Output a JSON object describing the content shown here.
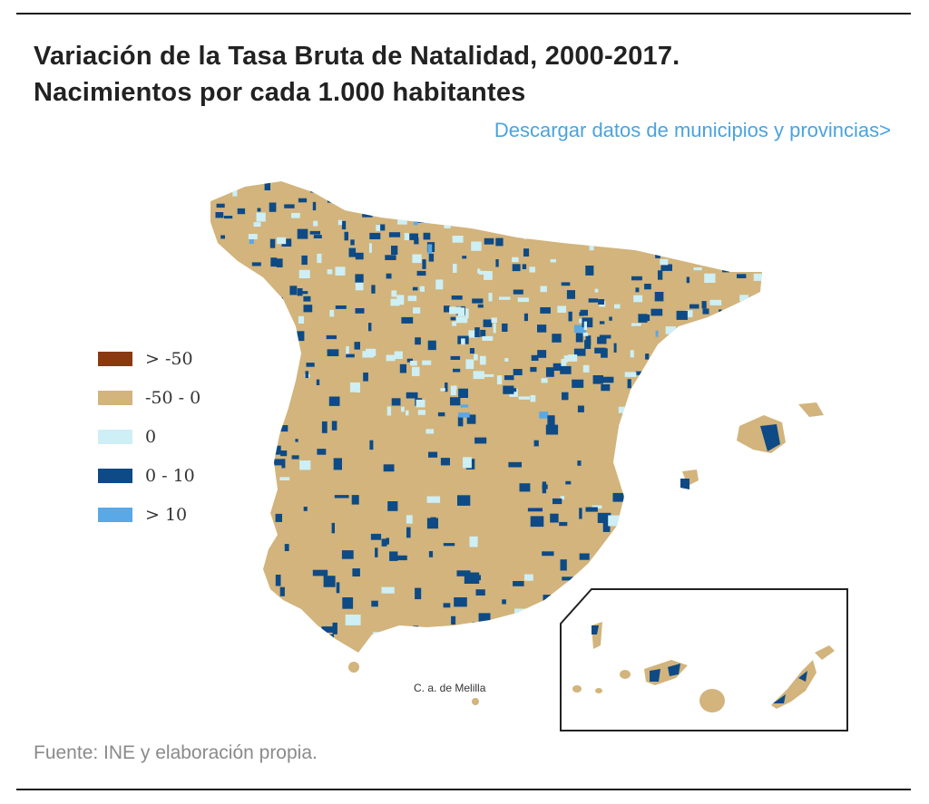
{
  "header": {
    "title_line1": "Variación de la Tasa Bruta de Natalidad, 2000-2017.",
    "title_line2": "Nacimientos por cada 1.000 habitantes",
    "download_link": "Descargar datos de municipios y provincias>"
  },
  "legend": {
    "items": [
      {
        "label": "> -50",
        "color": "#8a3a10"
      },
      {
        "label": "-50 - 0",
        "color": "#d2b47c"
      },
      {
        "label": "0",
        "color": "#cdeff5"
      },
      {
        "label": "0 - 10",
        "color": "#0d4a86"
      },
      {
        "label": "> 10",
        "color": "#5aa8e6"
      }
    ]
  },
  "map": {
    "inset_label": "C. a. de Melilla",
    "region_names": [
      "Spain mainland",
      "Balearic Islands",
      "Canary Islands",
      "Ceuta",
      "Melilla"
    ]
  },
  "footer": {
    "source": "Fuente: INE y elaboración propia."
  }
}
